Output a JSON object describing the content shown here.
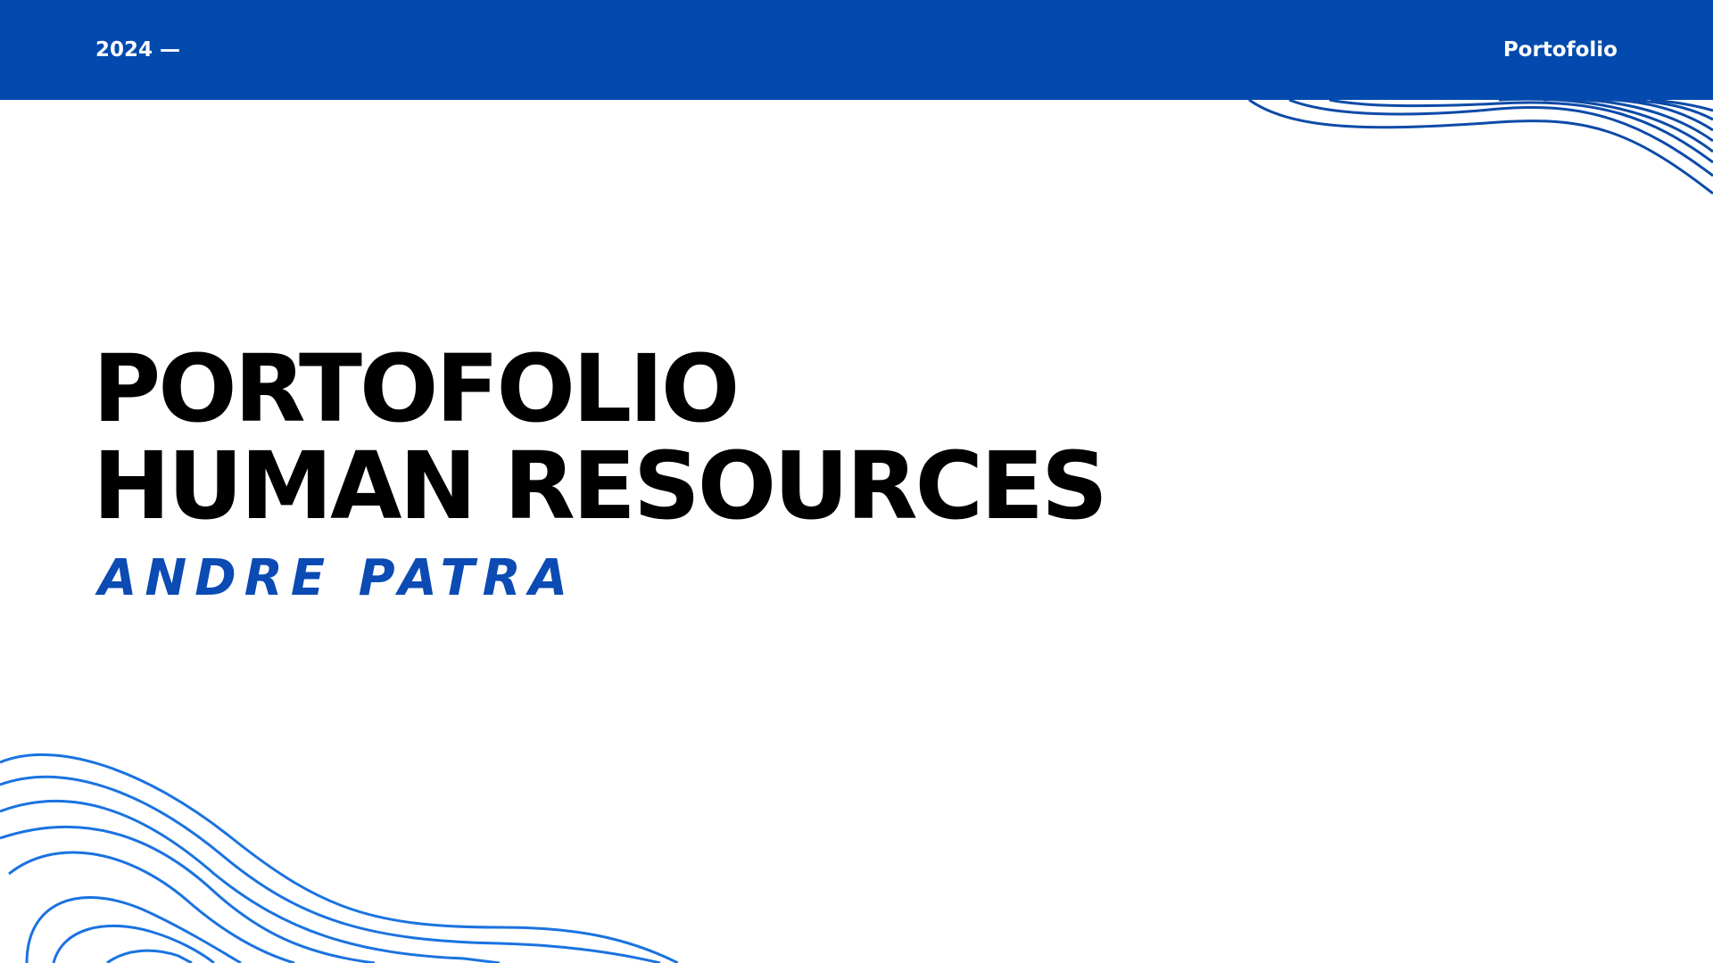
{
  "header": {
    "year_label": "2024 —",
    "brand_label": "Portofolio"
  },
  "title": {
    "line1": "PORTOFOLIO",
    "line2": "HUMAN RESOURCES"
  },
  "author": "ANDRE PATRA",
  "colors": {
    "header_bar": "#024aad",
    "accent_blue": "#0b4bb3",
    "wave_dark": "#0d4aa8",
    "wave_light": "#1a73e0",
    "title_text": "#000000"
  }
}
